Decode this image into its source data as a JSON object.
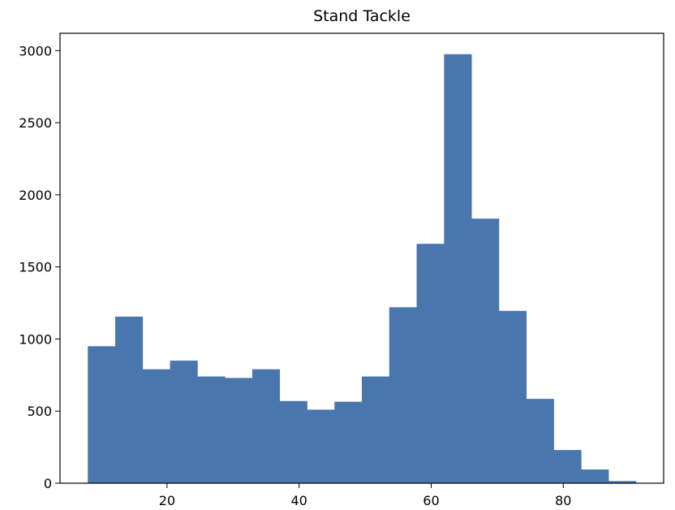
{
  "chart_data": {
    "type": "bar",
    "subtype": "histogram",
    "title": "Stand Tackle",
    "xlabel": "",
    "ylabel": "",
    "bar_color": "#4a76ae",
    "frame_color": "#000000",
    "grid": false,
    "legend": "none",
    "xlim": [
      3.8,
      95.2
    ],
    "ylim": [
      0,
      3120
    ],
    "xticks": [
      {
        "value": 20,
        "label": "20"
      },
      {
        "value": 40,
        "label": "40"
      },
      {
        "value": 60,
        "label": "60"
      },
      {
        "value": 80,
        "label": "80"
      }
    ],
    "yticks": [
      {
        "value": 0,
        "label": "0"
      },
      {
        "value": 500,
        "label": "500"
      },
      {
        "value": 1000,
        "label": "1000"
      },
      {
        "value": 1500,
        "label": "1500"
      },
      {
        "value": 2000,
        "label": "2000"
      },
      {
        "value": 2500,
        "label": "2500"
      },
      {
        "value": 3000,
        "label": "3000"
      }
    ],
    "bins": [
      {
        "x0": 8.0,
        "x1": 12.15,
        "count": 950
      },
      {
        "x0": 12.15,
        "x1": 16.3,
        "count": 1155
      },
      {
        "x0": 16.3,
        "x1": 20.45,
        "count": 790
      },
      {
        "x0": 20.45,
        "x1": 24.6,
        "count": 850
      },
      {
        "x0": 24.6,
        "x1": 28.75,
        "count": 740
      },
      {
        "x0": 28.75,
        "x1": 32.9,
        "count": 730
      },
      {
        "x0": 32.9,
        "x1": 37.05,
        "count": 790
      },
      {
        "x0": 37.05,
        "x1": 41.2,
        "count": 570
      },
      {
        "x0": 41.2,
        "x1": 45.35,
        "count": 510
      },
      {
        "x0": 45.35,
        "x1": 49.5,
        "count": 565
      },
      {
        "x0": 49.5,
        "x1": 53.65,
        "count": 740
      },
      {
        "x0": 53.65,
        "x1": 57.8,
        "count": 1220
      },
      {
        "x0": 57.8,
        "x1": 61.95,
        "count": 1660
      },
      {
        "x0": 61.95,
        "x1": 66.1,
        "count": 2975
      },
      {
        "x0": 66.1,
        "x1": 70.25,
        "count": 1835
      },
      {
        "x0": 70.25,
        "x1": 74.4,
        "count": 1195
      },
      {
        "x0": 74.4,
        "x1": 78.55,
        "count": 585
      },
      {
        "x0": 78.55,
        "x1": 82.7,
        "count": 230
      },
      {
        "x0": 82.7,
        "x1": 86.85,
        "count": 95
      },
      {
        "x0": 86.85,
        "x1": 91.0,
        "count": 15
      }
    ]
  }
}
